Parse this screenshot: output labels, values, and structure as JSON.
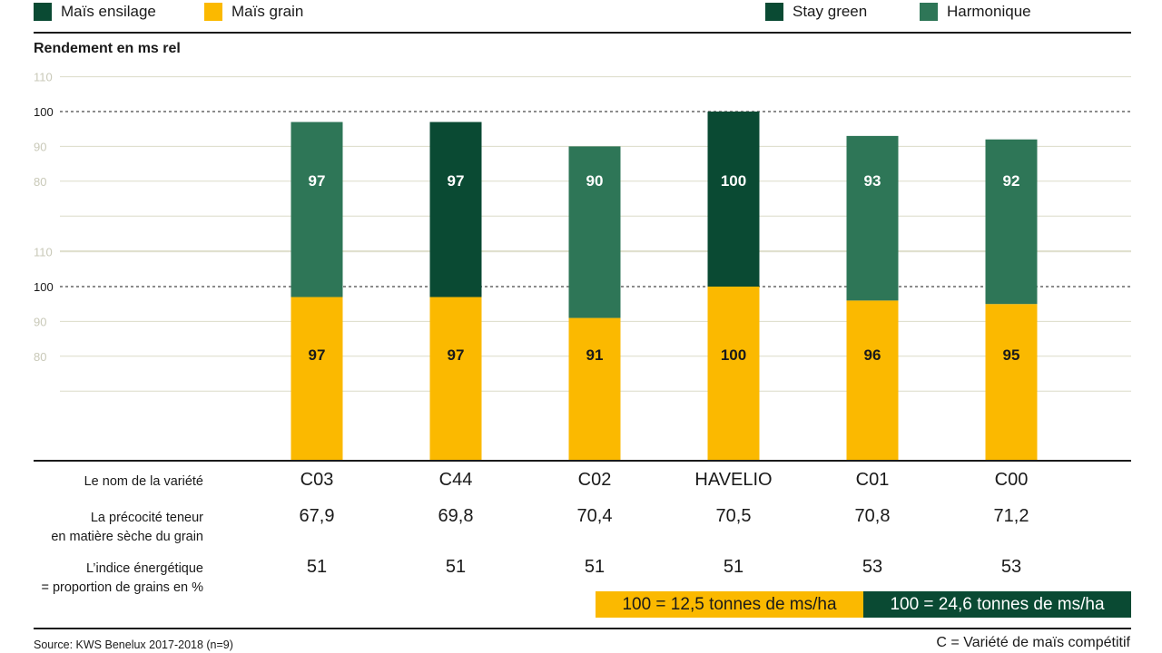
{
  "legend": [
    {
      "label": "Maïs ensilage",
      "color": "#0a4a33"
    },
    {
      "label": "Maïs grain",
      "color": "#fbb900"
    },
    {
      "label": "Stay green",
      "color": "#0a4a33"
    },
    {
      "label": "Harmonique",
      "color": "#2e7657"
    }
  ],
  "colors": {
    "grain": "#fbb900",
    "stay_green": "#0a4a33",
    "harmonique": "#2e7657",
    "grid": "#dcdcc8",
    "axis_text": "#c9c9b8"
  },
  "chart_data": {
    "type": "bar",
    "ylabel": "Rendement en ms rel",
    "ylim": [
      60,
      110
    ],
    "yticks": [
      80,
      90,
      100,
      110
    ],
    "reference_line": 100,
    "categories": [
      "C03",
      "C44",
      "C02",
      "HAVELIO",
      "C01",
      "C00"
    ],
    "panels": [
      {
        "name": "Maïs ensilage",
        "values": [
          97,
          97,
          90,
          100,
          93,
          92
        ],
        "types": [
          "Harmonique",
          "Stay green",
          "Harmonique",
          "Stay green",
          "Harmonique",
          "Harmonique"
        ],
        "data_labels": [
          "97",
          "97",
          "90",
          "100",
          "93",
          "92"
        ]
      },
      {
        "name": "Maïs grain",
        "values": [
          97,
          97,
          91,
          100,
          96,
          95
        ],
        "data_labels": [
          "97",
          "97",
          "91",
          "100",
          "96",
          "95"
        ]
      }
    ]
  },
  "table": {
    "rows": [
      {
        "label": [
          "Le nom de la variété"
        ],
        "values": [
          "C03",
          "C44",
          "C02",
          "HAVELIO",
          "C01",
          "C00"
        ]
      },
      {
        "label": [
          "La précocité teneur",
          "en matière sèche du grain"
        ],
        "values": [
          "67,9",
          "69,8",
          "70,4",
          "70,5",
          "70,8",
          "71,2"
        ]
      },
      {
        "label": [
          "L’indice énergétique",
          "= proportion de grains en %"
        ],
        "values": [
          "51",
          "51",
          "51",
          "51",
          "53",
          "53"
        ]
      }
    ]
  },
  "notes": {
    "grain": "100 = 12,5 tonnes de ms/ha",
    "ensilage": "100 = 24,6 tonnes de ms/ha"
  },
  "footer": {
    "source": "Source: KWS Benelux 2017-2018 (n=9)",
    "legend_c": "C = Variété de maïs compétitif"
  }
}
